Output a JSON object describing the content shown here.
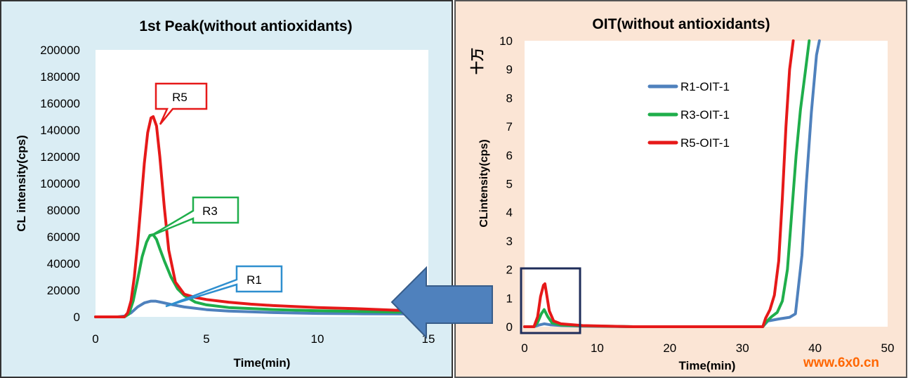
{
  "colors": {
    "left_bg": "#daedf4",
    "right_bg": "#fbe5d5",
    "blue": "#4f81bd",
    "green": "#1fae4b",
    "red": "#e61919",
    "callout_blue": "#2f8fcf",
    "arrow_fill": "#4f81bd",
    "arrow_stroke": "#385d8a",
    "zoom_box": "#1f2d5a",
    "watermark": "#ff6600"
  },
  "watermark": "www.6x0.cn",
  "chart_data": [
    {
      "type": "line",
      "title": "1st Peak(without antioxidants)",
      "xlabel": "Time(min)",
      "ylabel": "CL intensity(cps)",
      "xlim": [
        0,
        15
      ],
      "ylim": [
        0,
        200000
      ],
      "xticks": [
        "0",
        "5",
        "10",
        "15"
      ],
      "yticks": [
        "0",
        "20000",
        "40000",
        "60000",
        "80000",
        "100000",
        "120000",
        "140000",
        "160000",
        "180000",
        "200000"
      ],
      "grid": false,
      "legend": "none",
      "callouts": [
        "R5",
        "R3",
        "R1"
      ],
      "series": [
        {
          "name": "R1",
          "color": "#4f81bd",
          "x": [
            0,
            1.0,
            1.3,
            1.6,
            1.9,
            2.2,
            2.5,
            2.7,
            3.0,
            3.5,
            4.0,
            5.0,
            6.0,
            8.0,
            10.0,
            12.0,
            13.5,
            15.0
          ],
          "y": [
            0,
            0,
            600,
            3000,
            7500,
            10500,
            11800,
            11800,
            10800,
            9000,
            7400,
            5400,
            4300,
            3200,
            2600,
            2300,
            2200,
            2100
          ]
        },
        {
          "name": "R3",
          "color": "#1fae4b",
          "x": [
            0,
            1.3,
            1.5,
            1.7,
            1.9,
            2.1,
            2.3,
            2.45,
            2.6,
            2.75,
            2.9,
            3.1,
            3.4,
            3.7,
            4.0,
            4.5,
            5.0,
            6.0,
            8.0,
            10.0,
            12.0,
            13.5,
            15.0
          ],
          "y": [
            0,
            0,
            2000,
            12000,
            28000,
            45000,
            56000,
            61000,
            61500,
            58000,
            51000,
            42000,
            30000,
            21000,
            16000,
            11000,
            9000,
            7000,
            5500,
            4600,
            4000,
            3600,
            3400
          ]
        },
        {
          "name": "R5",
          "color": "#e61919",
          "x": [
            0,
            1.3,
            1.45,
            1.6,
            1.75,
            1.9,
            2.05,
            2.2,
            2.35,
            2.5,
            2.6,
            2.75,
            2.9,
            3.1,
            3.3,
            3.6,
            4.0,
            4.5,
            5.0,
            6.0,
            7.0,
            8.0,
            10.0,
            12.0,
            13.5,
            15.0
          ],
          "y": [
            0,
            0,
            3000,
            12000,
            30000,
            55000,
            85000,
            115000,
            138000,
            149000,
            150000,
            143000,
            120000,
            82000,
            50000,
            26000,
            17000,
            14500,
            13000,
            11000,
            9500,
            8500,
            7000,
            6000,
            5000,
            4500
          ]
        }
      ]
    },
    {
      "type": "line",
      "title": "OIT(without antioxidants)",
      "xlabel": "Time(min)",
      "ylabel": "CLintensity(cps)",
      "unit_label": "十万",
      "xlim": [
        0,
        50
      ],
      "ylim": [
        0,
        10
      ],
      "xticks": [
        "0",
        "10",
        "20",
        "30",
        "40",
        "50"
      ],
      "yticks": [
        "0",
        "1",
        "2",
        "3",
        "4",
        "5",
        "6",
        "7",
        "8",
        "9",
        "10"
      ],
      "grid": false,
      "legend": "center",
      "series": [
        {
          "name": "R1-OIT-1",
          "color": "#4f81bd",
          "x": [
            0,
            1.3,
            2.0,
            2.7,
            3.5,
            5,
            8,
            15,
            32.8,
            33.5,
            35,
            36.5,
            37.3,
            38.2,
            38.8,
            39.5,
            40.2,
            40.6
          ],
          "y": [
            0,
            0,
            0.06,
            0.1,
            0.07,
            0.04,
            0.02,
            0,
            0,
            0.2,
            0.27,
            0.33,
            0.45,
            2.5,
            5.0,
            7.5,
            9.5,
            10
          ]
        },
        {
          "name": "R3-OIT-1",
          "color": "#1fae4b",
          "x": [
            0,
            1.3,
            1.8,
            2.3,
            2.7,
            3.2,
            3.8,
            5,
            8,
            15,
            32.8,
            33.2,
            34.0,
            34.8,
            35.5,
            36.2,
            36.8,
            37.4,
            38.0,
            38.7,
            39.2
          ],
          "y": [
            0,
            0,
            0.15,
            0.45,
            0.6,
            0.35,
            0.13,
            0.06,
            0.03,
            0,
            0,
            0.15,
            0.35,
            0.5,
            0.9,
            2.0,
            4.0,
            6.0,
            7.6,
            9.0,
            10
          ]
        },
        {
          "name": "R5-OIT-1",
          "color": "#e61919",
          "x": [
            0,
            1.3,
            1.8,
            2.2,
            2.6,
            2.8,
            3.0,
            3.4,
            4.0,
            5,
            8,
            15,
            32.8,
            33.2,
            33.8,
            34.4,
            35.0,
            35.5,
            36.0,
            36.5,
            37.0
          ],
          "y": [
            0,
            0,
            0.35,
            1.05,
            1.45,
            1.5,
            1.2,
            0.55,
            0.2,
            0.1,
            0.04,
            0,
            0,
            0.3,
            0.6,
            1.1,
            2.3,
            4.5,
            7.0,
            9.0,
            10
          ]
        }
      ]
    }
  ]
}
